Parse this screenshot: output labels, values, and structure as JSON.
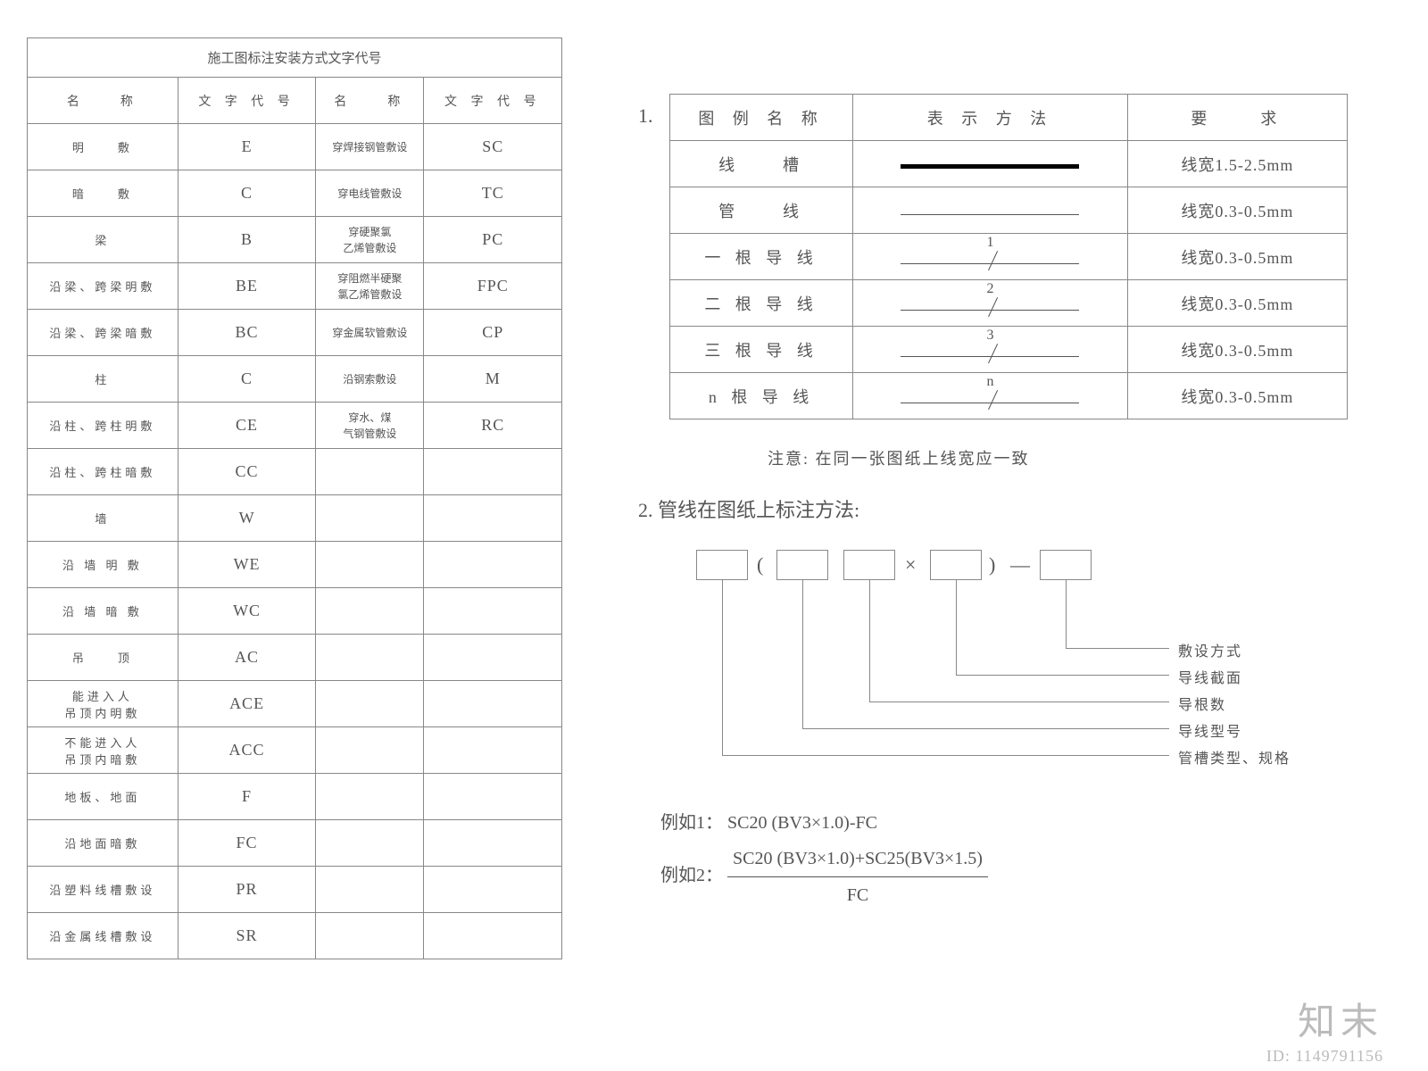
{
  "left": {
    "title": "施工图标注安装方式文字代号",
    "hName": "名　　称",
    "hCode": "文 字 代 号",
    "rows": [
      {
        "n1": "明　　敷",
        "c1": "E",
        "n2": "穿焊接钢管敷设",
        "c2": "SC"
      },
      {
        "n1": "暗　　敷",
        "c1": "C",
        "n2": "穿电线管敷设",
        "c2": "TC"
      },
      {
        "n1": "梁",
        "c1": "B",
        "n2": "穿硬聚氯\n乙烯管敷设",
        "c2": "PC"
      },
      {
        "n1": "沿梁、跨梁明敷",
        "c1": "BE",
        "n2": "穿阻燃半硬聚\n氯乙烯管敷设",
        "c2": "FPC"
      },
      {
        "n1": "沿梁、跨梁暗敷",
        "c1": "BC",
        "n2": "穿金属软管敷设",
        "c2": "CP"
      },
      {
        "n1": "柱",
        "c1": "C",
        "n2": "沿钢索敷设",
        "c2": "M"
      },
      {
        "n1": "沿柱、跨柱明敷",
        "c1": "CE",
        "n2": "穿水、煤\n气钢管敷设",
        "c2": "RC"
      },
      {
        "n1": "沿柱、跨柱暗敷",
        "c1": "CC",
        "n2": "",
        "c2": ""
      },
      {
        "n1": "墙",
        "c1": "W",
        "n2": "",
        "c2": ""
      },
      {
        "n1": "沿 墙 明 敷",
        "c1": "WE",
        "n2": "",
        "c2": ""
      },
      {
        "n1": "沿 墙 暗 敷",
        "c1": "WC",
        "n2": "",
        "c2": ""
      },
      {
        "n1": "吊　　顶",
        "c1": "AC",
        "n2": "",
        "c2": ""
      },
      {
        "n1": "能进入人\n吊顶内明敷",
        "c1": "ACE",
        "n2": "",
        "c2": ""
      },
      {
        "n1": "不能进入人\n吊顶内暗敷",
        "c1": "ACC",
        "n2": "",
        "c2": ""
      },
      {
        "n1": "地板、地面",
        "c1": "F",
        "n2": "",
        "c2": ""
      },
      {
        "n1": "沿地面暗敷",
        "c1": "FC",
        "n2": "",
        "c2": ""
      },
      {
        "n1": "沿塑料线槽敷设",
        "c1": "PR",
        "n2": "",
        "c2": ""
      },
      {
        "n1": "沿金属线槽敷设",
        "c1": "SR",
        "n2": "",
        "c2": ""
      }
    ]
  },
  "legend": {
    "num1": "1.",
    "hName": "图 例 名 称",
    "hSym": "表 示 方 法",
    "hReq": "要　　求",
    "rows": [
      {
        "name": "线　　槽",
        "sym": "thick",
        "label": "",
        "req": "线宽1.5-2.5mm"
      },
      {
        "name": "管　　线",
        "sym": "thin",
        "label": "",
        "req": "线宽0.3-0.5mm"
      },
      {
        "name": "一 根 导 线",
        "sym": "wire",
        "ticks": 1,
        "label": "1",
        "req": "线宽0.3-0.5mm"
      },
      {
        "name": "二 根 导 线",
        "sym": "wire",
        "ticks": 1,
        "label": "2",
        "req": "线宽0.3-0.5mm"
      },
      {
        "name": "三 根 导 线",
        "sym": "wire",
        "ticks": 1,
        "label": "3",
        "req": "线宽0.3-0.5mm"
      },
      {
        "name": "n 根 导 线",
        "sym": "wire",
        "ticks": 1,
        "label": "n",
        "req": "线宽0.3-0.5mm"
      }
    ],
    "note": "注意: 在同一张图纸上线宽应一致",
    "num2": "2. 管线在图纸上标注方法:"
  },
  "diagram": {
    "lp": "(",
    "rp": ")",
    "times": "×",
    "dash": "—",
    "labels": [
      "敷设方式",
      "导线截面",
      "导根数",
      "导线型号",
      "管槽类型、规格"
    ]
  },
  "examples": {
    "l1a": "例如1：",
    "l1b": "SC20 (BV3×1.0)-FC",
    "l2a": "例如2：",
    "l2top": "SC20 (BV3×1.0)+SC25(BV3×1.5)",
    "l2bot": "FC"
  },
  "wm": {
    "logo": "知末",
    "id": "ID: 1149791156"
  },
  "colors": {
    "border": "#888888",
    "text": "#555555",
    "bg": "#ffffff"
  }
}
